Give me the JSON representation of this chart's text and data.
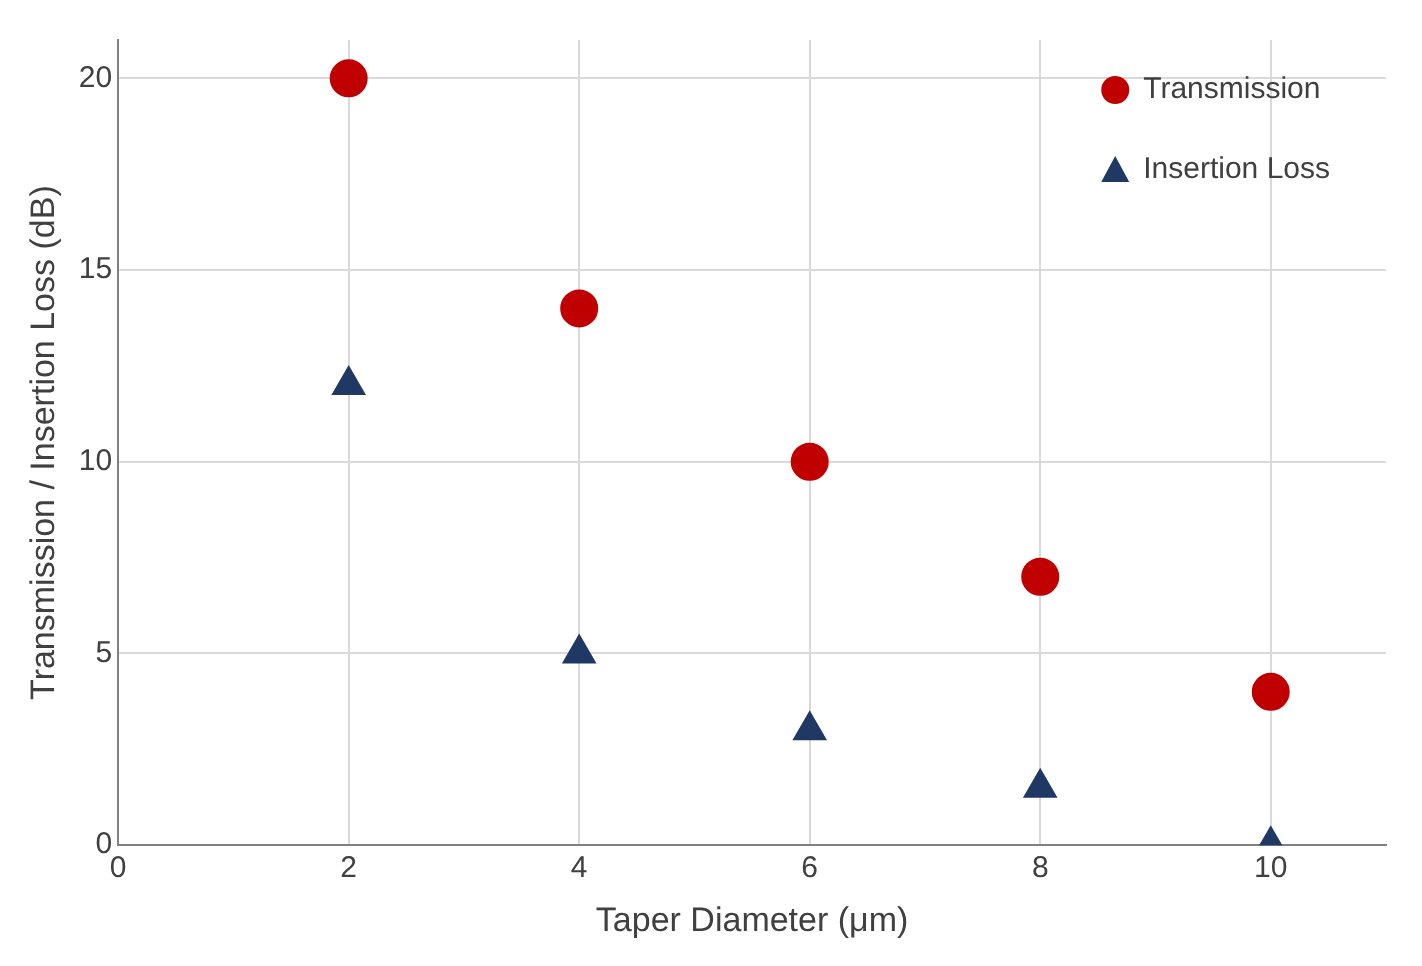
{
  "chart_data": {
    "type": "scatter",
    "xlabel": "Taper Diameter (μm)",
    "ylabel": "Transmission / Insertion Loss (dB)",
    "x": [
      2,
      4,
      6,
      8,
      10
    ],
    "series": [
      {
        "name": "Transmission",
        "color": "#c00000",
        "marker": "circle",
        "values": [
          20,
          14,
          10,
          7,
          4
        ]
      },
      {
        "name": "Insertion Loss",
        "color": "#1f3864",
        "marker": "triangle",
        "values": [
          12,
          5,
          3,
          1.5,
          0
        ]
      }
    ],
    "xlim": [
      0,
      11
    ],
    "xticks": [
      0,
      2,
      4,
      6,
      8,
      10
    ],
    "ylim": [
      0,
      21
    ],
    "yticks": [
      0,
      5,
      10,
      15,
      20
    ],
    "grid": true,
    "legend": "top right"
  }
}
